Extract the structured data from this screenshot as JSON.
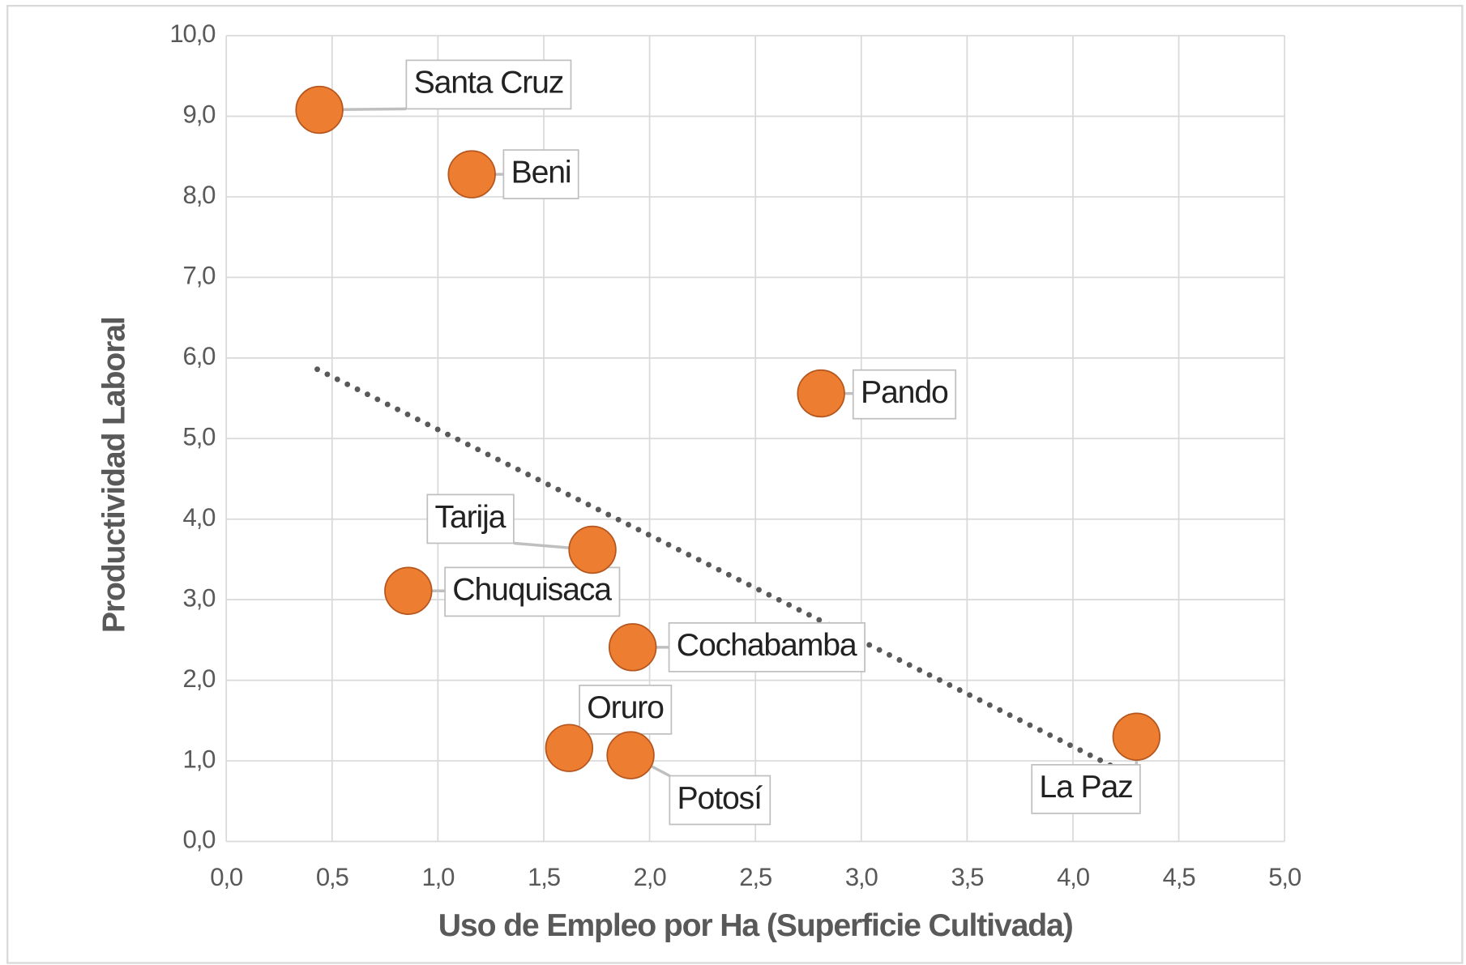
{
  "chart_data": {
    "type": "scatter",
    "xlabel": "Uso de Empleo por Ha (Superficie Cultivada)",
    "ylabel": "Productividad Laboral",
    "color": "#ed7d31",
    "grid": true,
    "xlim": [
      0,
      5
    ],
    "ylim": [
      0,
      10
    ],
    "xticks": [
      {
        "value": 0,
        "label": "0,0"
      },
      {
        "value": 0.5,
        "label": "0,5"
      },
      {
        "value": 1,
        "label": "1,0"
      },
      {
        "value": 1.5,
        "label": "1,5"
      },
      {
        "value": 2,
        "label": "2,0"
      },
      {
        "value": 2.5,
        "label": "2,5"
      },
      {
        "value": 3,
        "label": "3,0"
      },
      {
        "value": 3.5,
        "label": "3,5"
      },
      {
        "value": 4,
        "label": "4,0"
      },
      {
        "value": 4.5,
        "label": "4,5"
      },
      {
        "value": 5,
        "label": "5,0"
      }
    ],
    "yticks": [
      {
        "value": 0,
        "label": "0,0"
      },
      {
        "value": 1,
        "label": "1,0"
      },
      {
        "value": 2,
        "label": "2,0"
      },
      {
        "value": 3,
        "label": "3,0"
      },
      {
        "value": 4,
        "label": "4,0"
      },
      {
        "value": 5,
        "label": "5,0"
      },
      {
        "value": 6,
        "label": "6,0"
      },
      {
        "value": 7,
        "label": "7,0"
      },
      {
        "value": 8,
        "label": "8,0"
      },
      {
        "value": 9,
        "label": "9,0"
      },
      {
        "value": 10,
        "label": "10,0"
      }
    ],
    "series": [
      {
        "labels": [
          "Santa Cruz",
          "Beni",
          "Pando",
          "Tarija",
          "Chuquisaca",
          "Cochabamba",
          "Oruro",
          "Potosí",
          "La Paz"
        ],
        "x": [
          0.44,
          1.16,
          2.81,
          1.73,
          0.86,
          1.92,
          1.62,
          1.91,
          4.3
        ],
        "values": [
          9.08,
          8.28,
          5.56,
          3.62,
          3.11,
          2.41,
          1.16,
          1.07,
          1.3
        ]
      }
    ],
    "trendline": {
      "x": [
        0.43,
        4.28
      ],
      "values": [
        5.86,
        0.81
      ],
      "color": "#595959"
    }
  }
}
